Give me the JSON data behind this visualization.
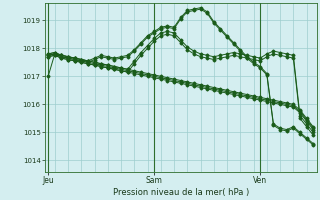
{
  "background_color": "#d4eef0",
  "grid_color": "#9ecece",
  "line_color": "#1a5c1a",
  "sep_color": "#2d6e2d",
  "title": "Pression niveau de la mer( hPa )",
  "xlabel_ticks": [
    "Jeu",
    "Sam",
    "Ven"
  ],
  "xlabel_tick_positions": [
    0,
    16,
    32
  ],
  "ylim": [
    1013.6,
    1019.6
  ],
  "yticks": [
    1014,
    1015,
    1016,
    1017,
    1018,
    1019
  ],
  "num_points": 41,
  "x_jeu": 0,
  "x_sam": 16,
  "x_ven": 32,
  "series": [
    [
      1017.0,
      1017.8,
      1017.75,
      1017.7,
      1017.65,
      1017.6,
      1017.55,
      1017.5,
      1017.45,
      1017.4,
      1017.35,
      1017.3,
      1017.25,
      1017.2,
      1017.15,
      1017.1,
      1017.05,
      1017.0,
      1016.95,
      1016.9,
      1016.85,
      1016.8,
      1016.75,
      1016.7,
      1016.65,
      1016.6,
      1016.55,
      1016.5,
      1016.45,
      1016.4,
      1016.35,
      1016.3,
      1016.25,
      1016.2,
      1016.15,
      1016.1,
      1016.05,
      1016.0,
      1015.8,
      1015.5,
      1015.2
    ],
    [
      1017.7,
      1017.75,
      1017.65,
      1017.6,
      1017.55,
      1017.5,
      1017.45,
      1017.4,
      1017.35,
      1017.3,
      1017.25,
      1017.2,
      1017.15,
      1017.1,
      1017.05,
      1017.0,
      1016.95,
      1016.9,
      1016.85,
      1016.8,
      1016.75,
      1016.7,
      1016.65,
      1016.6,
      1016.55,
      1016.5,
      1016.45,
      1016.4,
      1016.35,
      1016.3,
      1016.25,
      1016.2,
      1016.15,
      1016.1,
      1016.05,
      1016.0,
      1015.95,
      1015.9,
      1015.7,
      1015.4,
      1015.1
    ],
    [
      1017.75,
      1017.8,
      1017.7,
      1017.65,
      1017.6,
      1017.55,
      1017.5,
      1017.45,
      1017.4,
      1017.35,
      1017.3,
      1017.25,
      1017.2,
      1017.15,
      1017.1,
      1017.05,
      1017.0,
      1016.95,
      1016.9,
      1016.85,
      1016.8,
      1016.75,
      1016.7,
      1016.65,
      1016.6,
      1016.55,
      1016.5,
      1016.45,
      1016.4,
      1016.35,
      1016.3,
      1016.25,
      1016.2,
      1016.15,
      1016.1,
      1016.05,
      1016.0,
      1015.95,
      1015.75,
      1015.45,
      1015.15
    ],
    [
      1017.8,
      1017.85,
      1017.75,
      1017.7,
      1017.65,
      1017.6,
      1017.55,
      1017.5,
      1017.45,
      1017.4,
      1017.35,
      1017.3,
      1017.25,
      1017.55,
      1017.85,
      1018.1,
      1018.35,
      1018.55,
      1018.6,
      1018.55,
      1018.3,
      1018.05,
      1017.9,
      1017.8,
      1017.75,
      1017.7,
      1017.75,
      1017.8,
      1017.85,
      1017.8,
      1017.75,
      1017.7,
      1017.65,
      1017.8,
      1017.9,
      1017.85,
      1017.8,
      1017.75,
      1015.6,
      1015.3,
      1015.0
    ],
    [
      1017.7,
      1017.75,
      1017.65,
      1017.6,
      1017.55,
      1017.5,
      1017.45,
      1017.4,
      1017.35,
      1017.3,
      1017.25,
      1017.2,
      1017.15,
      1017.45,
      1017.75,
      1018.0,
      1018.25,
      1018.45,
      1018.5,
      1018.45,
      1018.2,
      1017.95,
      1017.8,
      1017.7,
      1017.65,
      1017.6,
      1017.65,
      1017.7,
      1017.75,
      1017.7,
      1017.65,
      1017.6,
      1017.55,
      1017.7,
      1017.8,
      1017.75,
      1017.7,
      1017.65,
      1015.5,
      1015.2,
      1014.9
    ],
    [
      1017.8,
      1017.85,
      1017.75,
      1017.7,
      1017.65,
      1017.6,
      1017.55,
      1017.65,
      1017.75,
      1017.7,
      1017.65,
      1017.7,
      1017.75,
      1017.95,
      1018.2,
      1018.45,
      1018.6,
      1018.75,
      1018.8,
      1018.75,
      1019.1,
      1019.35,
      1019.4,
      1019.45,
      1019.3,
      1018.95,
      1018.7,
      1018.45,
      1018.2,
      1017.95,
      1017.7,
      1017.5,
      1017.35,
      1017.1,
      1015.3,
      1015.15,
      1015.1,
      1015.2,
      1015.0,
      1014.8,
      1014.6
    ],
    [
      1017.75,
      1017.8,
      1017.7,
      1017.65,
      1017.6,
      1017.55,
      1017.5,
      1017.6,
      1017.7,
      1017.65,
      1017.6,
      1017.65,
      1017.7,
      1017.9,
      1018.15,
      1018.4,
      1018.55,
      1018.7,
      1018.75,
      1018.7,
      1019.05,
      1019.3,
      1019.35,
      1019.4,
      1019.25,
      1018.9,
      1018.65,
      1018.4,
      1018.15,
      1017.9,
      1017.65,
      1017.45,
      1017.3,
      1017.05,
      1015.25,
      1015.1,
      1015.05,
      1015.15,
      1014.95,
      1014.75,
      1014.55
    ]
  ]
}
